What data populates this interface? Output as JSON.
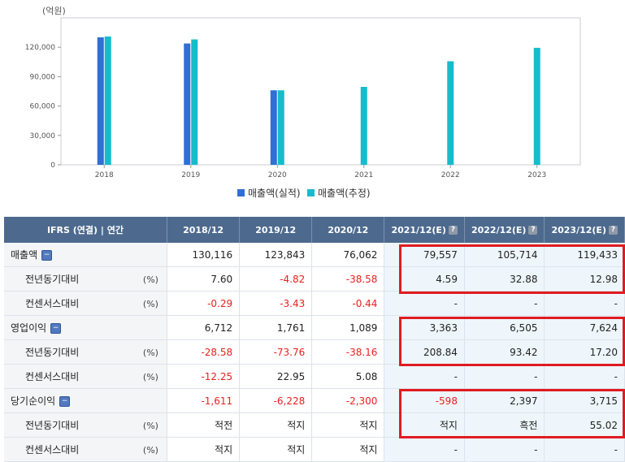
{
  "chart_data": {
    "type": "bar",
    "ylabel": "(억원)",
    "categories": [
      "2018",
      "2019",
      "2020",
      "2021",
      "2022",
      "2023"
    ],
    "series": [
      {
        "name": "매출액(실적)",
        "values": [
          130116,
          123843,
          76062,
          null,
          null,
          null
        ],
        "color": "#2f6fd6"
      },
      {
        "name": "매출액(추정)",
        "values": [
          131000,
          128000,
          76062,
          79557,
          105714,
          119433
        ],
        "color": "#16bccc"
      }
    ],
    "yticks": [
      "0",
      "30,000",
      "60,000",
      "90,000",
      "120,000"
    ],
    "ylim": [
      0,
      150000
    ],
    "grid": false,
    "legend": "bottom"
  },
  "table": {
    "headers": [
      "IFRS (연결) | 연간",
      "2018/12",
      "2019/12",
      "2020/12",
      "2021/12(E)",
      "2022/12(E)",
      "2023/12(E)"
    ],
    "rows": [
      {
        "label": "매출액",
        "toggle": true,
        "unit": "",
        "values": [
          "130,116",
          "123,843",
          "76,062",
          "79,557",
          "105,714",
          "119,433"
        ],
        "neg": [
          false,
          false,
          false,
          false,
          false,
          false
        ]
      },
      {
        "label": "전년동기대비",
        "sub": true,
        "unit": "(%)",
        "values": [
          "7.60",
          "-4.82",
          "-38.58",
          "4.59",
          "32.88",
          "12.98"
        ],
        "neg": [
          false,
          true,
          true,
          false,
          false,
          false
        ]
      },
      {
        "label": "컨센서스대비",
        "sub": true,
        "unit": "(%)",
        "values": [
          "-0.29",
          "-3.43",
          "-0.44",
          "-",
          "-",
          "-"
        ],
        "neg": [
          true,
          true,
          true,
          false,
          false,
          false
        ]
      },
      {
        "label": "영업이익",
        "toggle": true,
        "unit": "",
        "values": [
          "6,712",
          "1,761",
          "1,089",
          "3,363",
          "6,505",
          "7,624"
        ],
        "neg": [
          false,
          false,
          false,
          false,
          false,
          false
        ]
      },
      {
        "label": "전년동기대비",
        "sub": true,
        "unit": "(%)",
        "values": [
          "-28.58",
          "-73.76",
          "-38.16",
          "208.84",
          "93.42",
          "17.20"
        ],
        "neg": [
          true,
          true,
          true,
          false,
          false,
          false
        ]
      },
      {
        "label": "컨센서스대비",
        "sub": true,
        "unit": "(%)",
        "values": [
          "-12.25",
          "22.95",
          "5.08",
          "-",
          "-",
          "-"
        ],
        "neg": [
          true,
          false,
          false,
          false,
          false,
          false
        ]
      },
      {
        "label": "당기순이익",
        "toggle": true,
        "unit": "",
        "values": [
          "-1,611",
          "-6,228",
          "-2,300",
          "-598",
          "2,397",
          "3,715"
        ],
        "neg": [
          true,
          true,
          true,
          true,
          false,
          false
        ]
      },
      {
        "label": "전년동기대비",
        "sub": true,
        "unit": "(%)",
        "values": [
          "적전",
          "적지",
          "적지",
          "적지",
          "흑전",
          "55.02"
        ],
        "neg": [
          false,
          false,
          false,
          false,
          false,
          false
        ]
      },
      {
        "label": "컨센서스대비",
        "sub": true,
        "unit": "(%)",
        "values": [
          "적지",
          "적지",
          "적지",
          "-",
          "-",
          "-"
        ],
        "neg": [
          false,
          false,
          false,
          false,
          false,
          false
        ]
      }
    ]
  },
  "icons": {
    "toggle": "minus-toggle-icon",
    "estimate": "question-mark-icon"
  },
  "colors": {
    "header_bg": "#4d6a8e",
    "negative": "#e8211c",
    "highlight": "#e01b22"
  }
}
